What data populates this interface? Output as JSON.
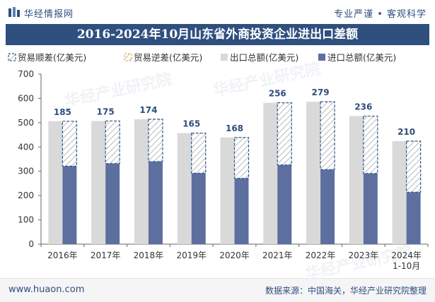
{
  "header": {
    "brand": "华经情报网",
    "tagline": "专业严谨 • 客观科学"
  },
  "watermark": {
    "text": "华经产业研究院",
    "url": "www.huaon.com"
  },
  "footer": {
    "url": "www.huaon.com",
    "source": "数据来源：中国海关，华经产业研究院整理"
  },
  "colors": {
    "title_band": "#2f4f7f",
    "export_bar": "#d9d9d9",
    "import_bar": "#5d6f9e",
    "label": "#2f4d7f",
    "diff_outline": "#2f5b8f"
  },
  "chart_data": {
    "type": "bar",
    "title": "2016-2024年10月山东省外商投资企业进出口差额",
    "categories": [
      "2016年",
      "2017年",
      "2018年",
      "2019年",
      "2020年",
      "2021年",
      "2022年",
      "2023年",
      "2024年\n1-10月"
    ],
    "series": [
      {
        "name": "出口总额(亿美元)",
        "values": [
          506,
          507,
          514,
          457,
          439,
          582,
          586,
          527,
          424
        ]
      },
      {
        "name": "进口总额(亿美元)",
        "values": [
          321,
          332,
          340,
          292,
          271,
          326,
          307,
          291,
          214
        ]
      },
      {
        "name": "贸易顺差(亿美元)",
        "values": [
          185,
          175,
          174,
          165,
          168,
          256,
          279,
          236,
          210
        ]
      },
      {
        "name": "贸易逆差(亿美元)",
        "values": [
          0,
          0,
          0,
          0,
          0,
          0,
          0,
          0,
          0
        ]
      }
    ],
    "legend": [
      {
        "label": "贸易顺差(亿美元)",
        "style": "surplus"
      },
      {
        "label": "贸易逆差(亿美元)",
        "style": "deficit"
      },
      {
        "label": "出口总额(亿美元)",
        "style": "export"
      },
      {
        "label": "进口总额(亿美元)",
        "style": "import"
      }
    ],
    "ylim": [
      0,
      700
    ],
    "yticks": [
      0,
      100,
      200,
      300,
      400,
      500,
      600,
      700
    ],
    "xlabel": "",
    "ylabel": "",
    "legend_position": "top"
  }
}
